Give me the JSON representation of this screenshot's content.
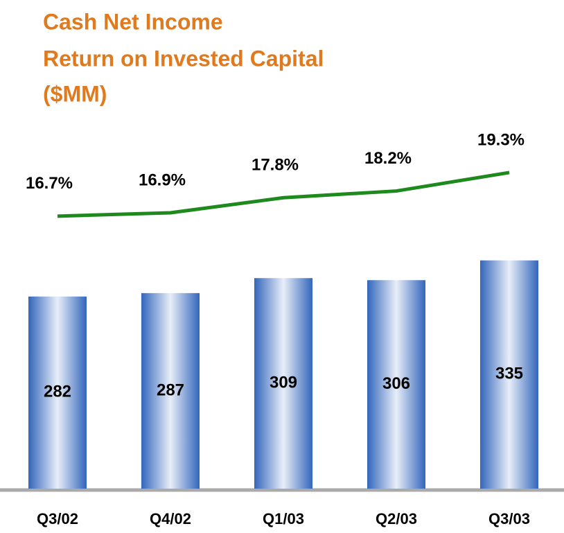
{
  "chart_data": {
    "type": "bar",
    "title": [
      "Cash Net Income",
      "Return on Invested Capital",
      "($MM)"
    ],
    "categories": [
      "Q3/02",
      "Q4/02",
      "Q1/03",
      "Q2/03",
      "Q3/03"
    ],
    "series": [
      {
        "type": "bar",
        "color": "#3366bb",
        "values": [
          282,
          287,
          309,
          306,
          335
        ]
      },
      {
        "type": "line",
        "axis": "y2",
        "color": "#1e8a1e",
        "values": [
          16.7,
          16.9,
          17.8,
          18.2,
          19.3
        ],
        "value_labels": [
          "16.7%",
          "16.9%",
          "17.8%",
          "18.2%",
          "19.3%"
        ]
      }
    ]
  }
}
